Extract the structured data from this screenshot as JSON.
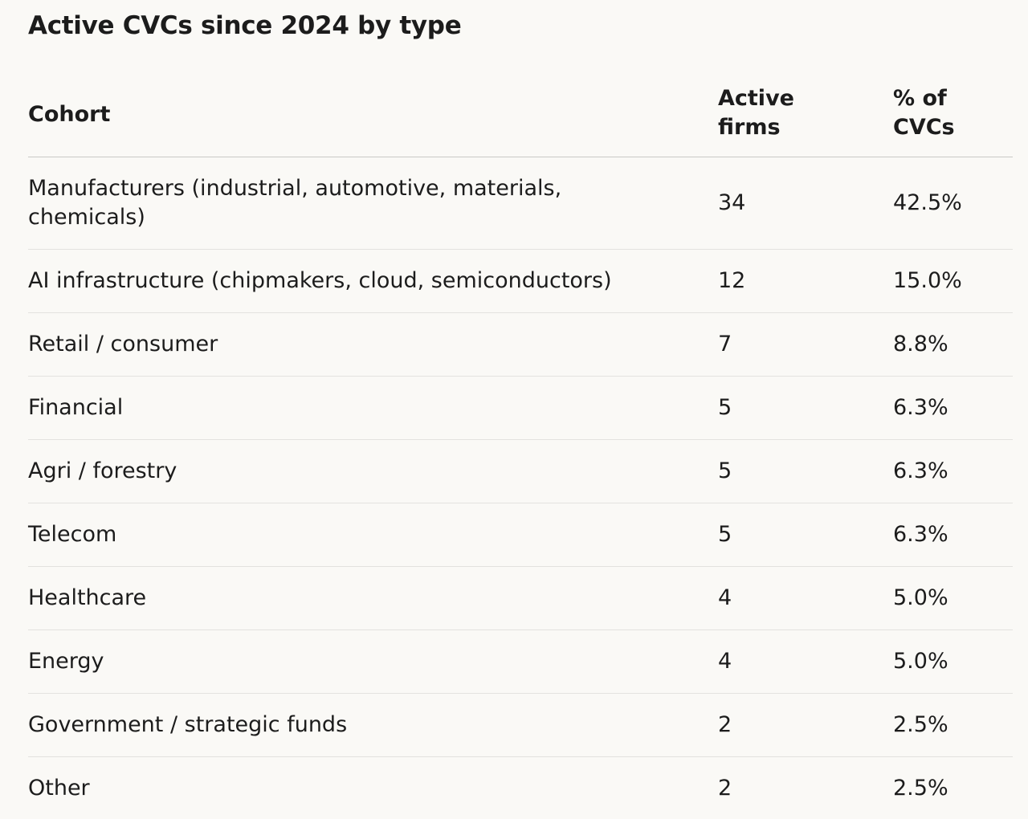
{
  "title": "Active CVCs since 2024 by type",
  "table": {
    "headers": {
      "cohort": "Cohort",
      "firms_line1": "Active",
      "firms_line2": "firms",
      "pct_line1": "% of",
      "pct_line2": "CVCs"
    },
    "rows": [
      {
        "cohort": "Manufacturers (industrial, automotive, materials, chemicals)",
        "firms": "34",
        "pct": "42.5%"
      },
      {
        "cohort": "AI infrastructure (chipmakers, cloud, semiconductors)",
        "firms": "12",
        "pct": "15.0%"
      },
      {
        "cohort": "Retail / consumer",
        "firms": "7",
        "pct": "8.8%"
      },
      {
        "cohort": "Financial",
        "firms": "5",
        "pct": "6.3%"
      },
      {
        "cohort": "Agri / forestry",
        "firms": "5",
        "pct": "6.3%"
      },
      {
        "cohort": "Telecom",
        "firms": "5",
        "pct": "6.3%"
      },
      {
        "cohort": "Healthcare",
        "firms": "4",
        "pct": "5.0%"
      },
      {
        "cohort": "Energy",
        "firms": "4",
        "pct": "5.0%"
      },
      {
        "cohort": "Government / strategic funds",
        "firms": "2",
        "pct": "2.5%"
      },
      {
        "cohort": "Other",
        "firms": "2",
        "pct": "2.5%"
      }
    ]
  }
}
